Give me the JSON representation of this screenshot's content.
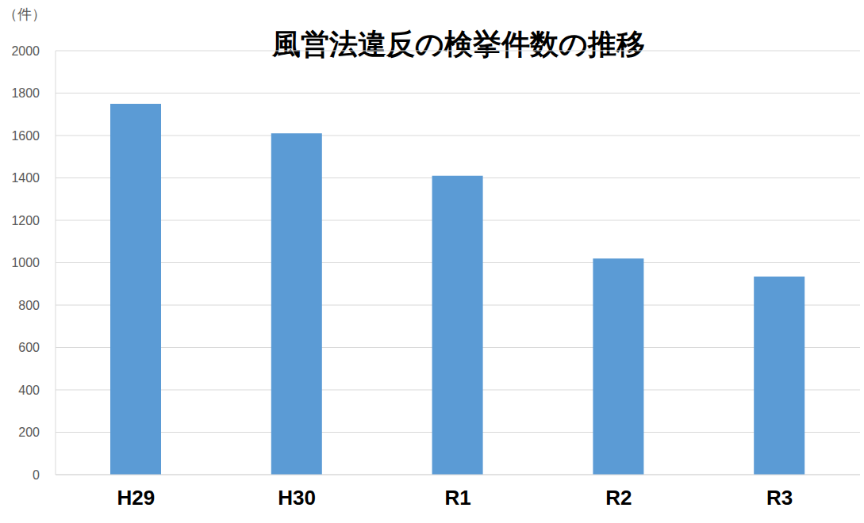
{
  "chart_data": {
    "type": "bar",
    "title": "風営法違反の検挙件数の推移",
    "y_label": "（件）",
    "categories": [
      "H29",
      "H30",
      "R1",
      "R2",
      "R3"
    ],
    "values": [
      1750,
      1610,
      1410,
      1020,
      935
    ],
    "color": "#5b9bd5",
    "ylim": [
      0,
      2000
    ],
    "yticks": [
      0,
      200,
      400,
      600,
      800,
      1000,
      1200,
      1400,
      1600,
      1800,
      2000
    ],
    "grid": true
  }
}
